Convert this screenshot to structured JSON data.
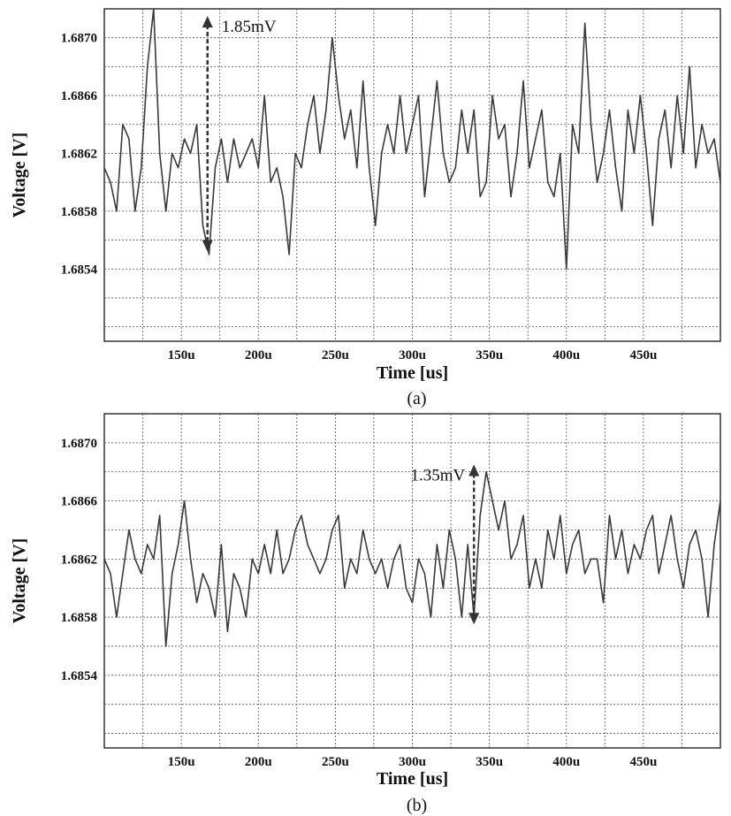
{
  "chart_data": [
    {
      "id": "a",
      "type": "line",
      "caption": "(a)",
      "xlabel": "Time [us]",
      "ylabel": "Voltage [V]",
      "xlim": [
        100,
        500
      ],
      "ylim": [
        1.6849,
        1.6872
      ],
      "x_ticks": [
        150,
        200,
        250,
        300,
        350,
        400,
        450
      ],
      "x_tick_labels": [
        "150u",
        "200u",
        "250u",
        "300u",
        "350u",
        "400u",
        "450u"
      ],
      "y_ticks": [
        1.6854,
        1.6858,
        1.6862,
        1.6866,
        1.687
      ],
      "y_tick_labels": [
        "1.6854",
        "1.6858",
        "1.6862",
        "1.6866",
        "1.6870"
      ],
      "grid": true,
      "annotation": {
        "text": "1.85mV",
        "x": 167,
        "y_top": 1.68715,
        "y_bottom": 1.68552
      },
      "series": [
        {
          "x": [
            100,
            104,
            108,
            112,
            116,
            120,
            124,
            128,
            132,
            136,
            140,
            144,
            148,
            152,
            156,
            160,
            164,
            168,
            172,
            176,
            180,
            184,
            188,
            192,
            196,
            200,
            204,
            208,
            212,
            216,
            220,
            224,
            228,
            232,
            236,
            240,
            244,
            248,
            252,
            256,
            260,
            264,
            268,
            272,
            276,
            280,
            284,
            288,
            292,
            296,
            300,
            304,
            308,
            312,
            316,
            320,
            324,
            328,
            332,
            336,
            340,
            344,
            348,
            352,
            356,
            360,
            364,
            368,
            372,
            376,
            380,
            384,
            388,
            392,
            396,
            400,
            404,
            408,
            412,
            416,
            420,
            424,
            428,
            432,
            436,
            440,
            444,
            448,
            452,
            456,
            460,
            464,
            468,
            472,
            476,
            480,
            484,
            488,
            492,
            496,
            500
          ],
          "y": [
            1.6861,
            1.686,
            1.6858,
            1.6864,
            1.6863,
            1.6858,
            1.6861,
            1.6868,
            1.6872,
            1.6862,
            1.6858,
            1.6862,
            1.6861,
            1.6863,
            1.6862,
            1.6864,
            1.6857,
            1.6855,
            1.6861,
            1.6863,
            1.686,
            1.6863,
            1.6861,
            1.6862,
            1.6863,
            1.6861,
            1.6866,
            1.686,
            1.6861,
            1.6859,
            1.6855,
            1.6862,
            1.6861,
            1.6864,
            1.6866,
            1.6862,
            1.6865,
            1.687,
            1.6866,
            1.6863,
            1.6865,
            1.6861,
            1.6867,
            1.6861,
            1.6857,
            1.6862,
            1.6864,
            1.6862,
            1.6866,
            1.6862,
            1.6864,
            1.6866,
            1.6859,
            1.6863,
            1.6867,
            1.6862,
            1.686,
            1.6861,
            1.6865,
            1.6862,
            1.6865,
            1.6859,
            1.686,
            1.6866,
            1.6863,
            1.6864,
            1.6859,
            1.6862,
            1.6867,
            1.6861,
            1.6863,
            1.6865,
            1.686,
            1.6859,
            1.6862,
            1.6854,
            1.6864,
            1.6862,
            1.6871,
            1.6864,
            1.686,
            1.6862,
            1.6865,
            1.6861,
            1.6858,
            1.6865,
            1.6862,
            1.6866,
            1.6862,
            1.6857,
            1.6863,
            1.6865,
            1.6861,
            1.6866,
            1.6862,
            1.6868,
            1.6861,
            1.6864,
            1.6862,
            1.6863,
            1.686
          ]
        }
      ]
    },
    {
      "id": "b",
      "type": "line",
      "caption": "(b)",
      "xlabel": "Time [us]",
      "ylabel": "Voltage [V]",
      "xlim": [
        100,
        500
      ],
      "ylim": [
        1.6849,
        1.6872
      ],
      "x_ticks": [
        150,
        200,
        250,
        300,
        350,
        400,
        450
      ],
      "x_tick_labels": [
        "150u",
        "200u",
        "250u",
        "300u",
        "350u",
        "400u",
        "450u"
      ],
      "y_ticks": [
        1.6854,
        1.6858,
        1.6862,
        1.6866,
        1.687
      ],
      "y_tick_labels": [
        "1.6854",
        "1.6858",
        "1.6862",
        "1.6866",
        "1.6870"
      ],
      "grid": true,
      "annotation": {
        "text": "1.35mV",
        "x": 340,
        "y_top": 1.68685,
        "y_bottom": 1.68575
      },
      "series": [
        {
          "x": [
            100,
            104,
            108,
            112,
            116,
            120,
            124,
            128,
            132,
            136,
            140,
            144,
            148,
            152,
            156,
            160,
            164,
            168,
            172,
            176,
            180,
            184,
            188,
            192,
            196,
            200,
            204,
            208,
            212,
            216,
            220,
            224,
            228,
            232,
            236,
            240,
            244,
            248,
            252,
            256,
            260,
            264,
            268,
            272,
            276,
            280,
            284,
            288,
            292,
            296,
            300,
            304,
            308,
            312,
            316,
            320,
            324,
            328,
            332,
            336,
            340,
            344,
            348,
            352,
            356,
            360,
            364,
            368,
            372,
            376,
            380,
            384,
            388,
            392,
            396,
            400,
            404,
            408,
            412,
            416,
            420,
            424,
            428,
            432,
            436,
            440,
            444,
            448,
            452,
            456,
            460,
            464,
            468,
            472,
            476,
            480,
            484,
            488,
            492,
            496,
            500
          ],
          "y": [
            1.6862,
            1.6861,
            1.6858,
            1.6861,
            1.6864,
            1.6862,
            1.6861,
            1.6863,
            1.6862,
            1.6865,
            1.6856,
            1.6861,
            1.6863,
            1.6866,
            1.6862,
            1.6859,
            1.6861,
            1.686,
            1.6858,
            1.6863,
            1.6857,
            1.6861,
            1.686,
            1.6858,
            1.6862,
            1.6861,
            1.6863,
            1.6861,
            1.6864,
            1.6861,
            1.6862,
            1.6864,
            1.6865,
            1.6863,
            1.6862,
            1.6861,
            1.6862,
            1.6864,
            1.6865,
            1.686,
            1.6862,
            1.6861,
            1.6864,
            1.6862,
            1.6861,
            1.6862,
            1.686,
            1.6862,
            1.6863,
            1.686,
            1.6859,
            1.6862,
            1.6861,
            1.6858,
            1.6863,
            1.686,
            1.6864,
            1.6862,
            1.6858,
            1.6863,
            1.6858,
            1.6865,
            1.6868,
            1.6866,
            1.6864,
            1.6866,
            1.6862,
            1.6863,
            1.6865,
            1.686,
            1.6862,
            1.686,
            1.6864,
            1.6862,
            1.6865,
            1.6861,
            1.6863,
            1.6864,
            1.6861,
            1.6862,
            1.6862,
            1.6859,
            1.6865,
            1.6862,
            1.6864,
            1.6861,
            1.6863,
            1.6862,
            1.6864,
            1.6865,
            1.6861,
            1.6863,
            1.6865,
            1.6862,
            1.686,
            1.6863,
            1.6864,
            1.6862,
            1.6858,
            1.6863,
            1.6866
          ]
        }
      ]
    }
  ]
}
